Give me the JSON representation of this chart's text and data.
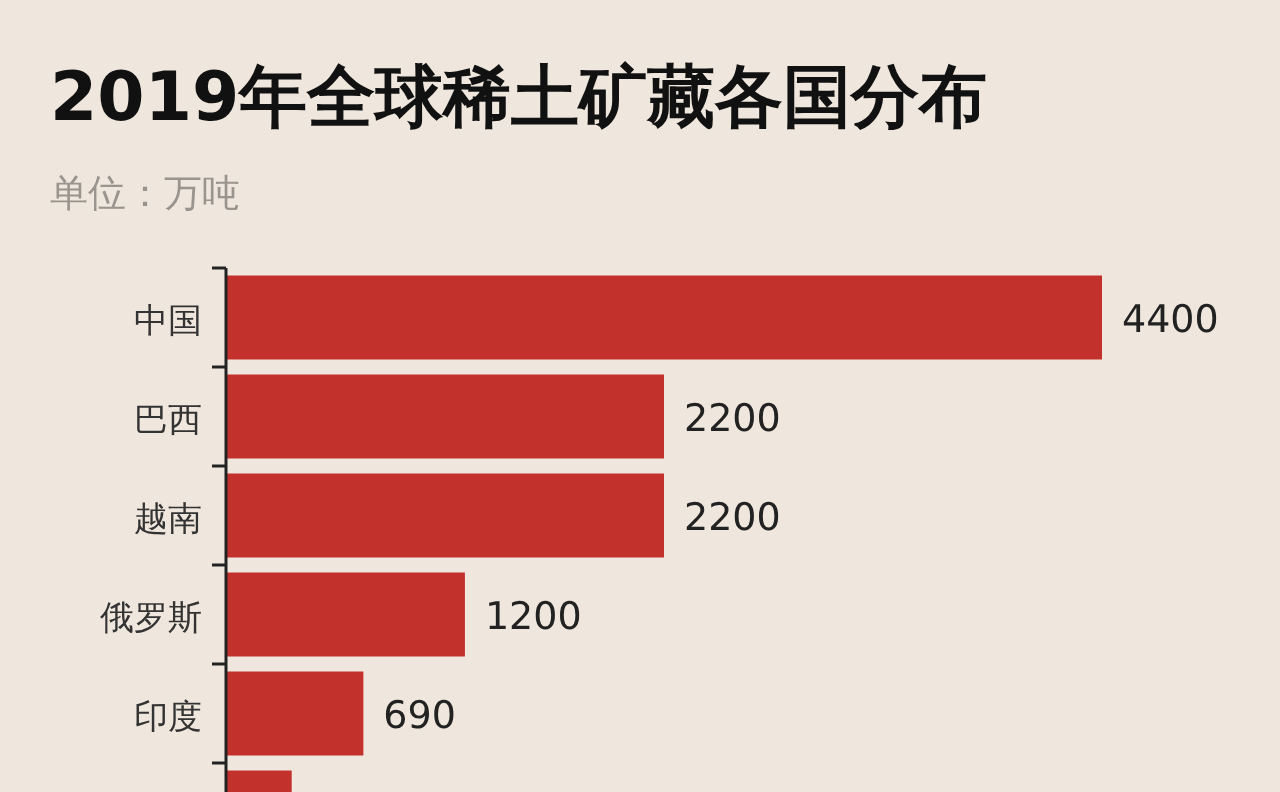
{
  "chart_data": {
    "type": "bar",
    "orientation": "horizontal",
    "title": "2019年全球稀土矿藏各国分布",
    "subtitle": "单位：万吨",
    "categories": [
      "中国",
      "巴西",
      "越南",
      "俄罗斯",
      "印度",
      null
    ],
    "values": [
      4400,
      2200,
      2200,
      1200,
      690,
      330
    ],
    "value_labels": [
      "4400",
      "2200",
      "2200",
      "1200",
      "690",
      null
    ],
    "color": "#c3312c"
  }
}
